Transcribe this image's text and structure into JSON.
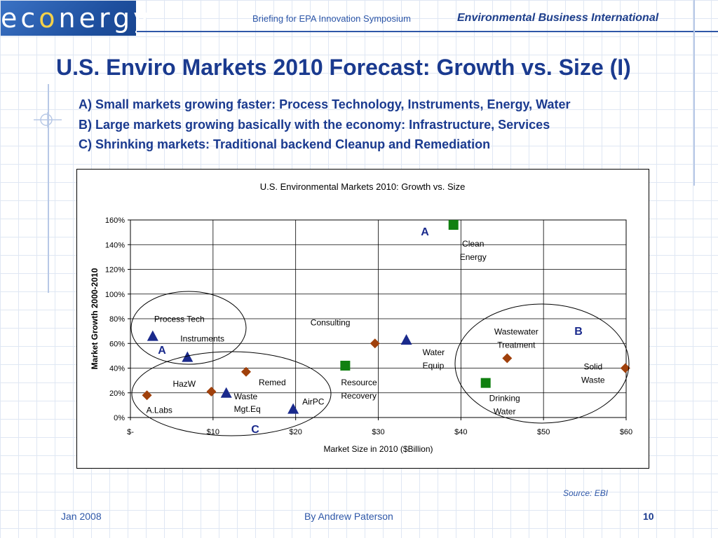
{
  "logo": {
    "prefix": "ec",
    "accent": "o",
    "suffix": "nergy"
  },
  "header": {
    "briefing": "Briefing for EPA Innovation Symposium",
    "org": "Environmental Business International"
  },
  "slide_title": "U.S. Enviro Markets 2010 Forecast: Growth vs. Size (I)",
  "bullets": [
    "A) Small markets growing faster: Process Technology, Instruments, Energy, Water",
    "B) Large markets growing basically with the economy: Infrastructure, Services",
    "C) Shrinking markets: Traditional backend Cleanup and Remediation"
  ],
  "chart_data": {
    "type": "scatter",
    "title": "U.S. Environmental Markets 2010:  Growth vs. Size",
    "xlabel": "Market Size in 2010 ($Billion)",
    "ylabel": "Market Growth 2000-2010",
    "xlim": [
      0,
      60
    ],
    "ylim": [
      0,
      1.6
    ],
    "x_ticks": [
      0,
      10,
      20,
      30,
      40,
      50,
      60
    ],
    "x_tick_labels": [
      "$-",
      "$10",
      "$20",
      "$30",
      "$40",
      "$50",
      "$60"
    ],
    "y_ticks": [
      0,
      0.2,
      0.4,
      0.6,
      0.8,
      1.0,
      1.2,
      1.4,
      1.6
    ],
    "y_tick_labels": [
      "0%",
      "20%",
      "40%",
      "60%",
      "80%",
      "100%",
      "120%",
      "140%",
      "160%"
    ],
    "grid": true,
    "colors": {
      "diamond": "#a0400b",
      "triangle": "#1a2a8c",
      "square": "#108010",
      "group_label": "#1a2a8c"
    },
    "points": [
      {
        "lines": [
          "Process Tech"
        ],
        "x": 2.7,
        "y": 0.66,
        "marker": "triangle"
      },
      {
        "lines": [
          "Instruments"
        ],
        "x": 6.9,
        "y": 0.49,
        "marker": "triangle"
      },
      {
        "lines": [
          "Consulting"
        ],
        "x": 29.6,
        "y": 0.6,
        "marker": "diamond"
      },
      {
        "lines": [
          "Water",
          "Equip"
        ],
        "x": 33.4,
        "y": 0.63,
        "marker": "triangle"
      },
      {
        "lines": [
          "Clean",
          "Energy"
        ],
        "x": 39.1,
        "y": 1.56,
        "marker": "square"
      },
      {
        "lines": [
          "Wastewater",
          "Treatment"
        ],
        "x": 45.6,
        "y": 0.48,
        "marker": "diamond"
      },
      {
        "lines": [
          "Solid",
          "Waste"
        ],
        "x": 59.9,
        "y": 0.4,
        "marker": "diamond"
      },
      {
        "lines": [
          "Resource",
          "Recovery"
        ],
        "x": 26.0,
        "y": 0.42,
        "marker": "square"
      },
      {
        "lines": [
          "Drinking",
          "Water"
        ],
        "x": 43.0,
        "y": 0.28,
        "marker": "square"
      },
      {
        "lines": [
          "Remed"
        ],
        "x": 14.0,
        "y": 0.37,
        "marker": "diamond"
      },
      {
        "lines": [
          "HazW"
        ],
        "x": 9.8,
        "y": 0.21,
        "marker": "diamond"
      },
      {
        "lines": [
          "Waste",
          "Mgt.Eq"
        ],
        "x": 11.6,
        "y": 0.2,
        "marker": "triangle"
      },
      {
        "lines": [
          "AirPC"
        ],
        "x": 19.7,
        "y": 0.07,
        "marker": "triangle"
      },
      {
        "lines": [
          "A.Labs"
        ],
        "x": 2.0,
        "y": 0.18,
        "marker": "diamond"
      }
    ],
    "groups": [
      {
        "label": "A",
        "members": [
          "Clean Energy"
        ]
      },
      {
        "label": "A",
        "members": [
          "Process Tech",
          "Instruments"
        ]
      },
      {
        "label": "B",
        "members": [
          "Wastewater Treatment",
          "Solid Waste",
          "Drinking Water"
        ]
      },
      {
        "label": "C",
        "members": [
          "Remed",
          "HazW",
          "Waste Mgt.Eq",
          "AirPC",
          "A.Labs"
        ]
      }
    ]
  },
  "source": "Source: EBI",
  "footer": {
    "date": "Jan 2008",
    "author": "By Andrew Paterson",
    "page": "10"
  }
}
